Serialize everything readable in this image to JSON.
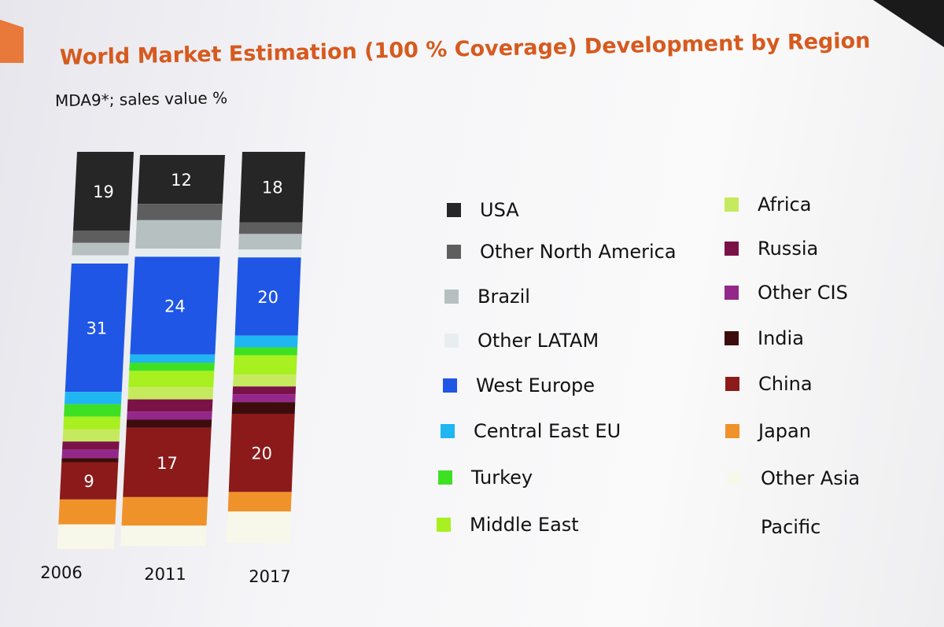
{
  "title": "World Market Estimation (100 % Coverage) Development by Region",
  "subtitle": "MDA9*; sales value %",
  "chart_data": {
    "type": "bar",
    "stacked": true,
    "unit": "%",
    "categories": [
      "2006",
      "2011",
      "2017"
    ],
    "series": [
      {
        "name": "USA",
        "color": "#262626",
        "values": [
          19,
          12,
          18
        ],
        "labels": [
          "19",
          "12",
          "18"
        ]
      },
      {
        "name": "Other North America",
        "color": "#5e5e5e",
        "values": [
          3,
          4,
          3
        ]
      },
      {
        "name": "Brazil",
        "color": "#b7c0c0",
        "values": [
          3,
          7,
          4
        ]
      },
      {
        "name": "Other LATAM",
        "color": "#e8eef0",
        "values": [
          2,
          2,
          2
        ]
      },
      {
        "name": "West Europe",
        "color": "#1f56e6",
        "values": [
          31,
          24,
          20
        ],
        "labels": [
          "31",
          "24",
          "20"
        ]
      },
      {
        "name": "Central East EU",
        "color": "#1fb6f2",
        "values": [
          3,
          2,
          3
        ]
      },
      {
        "name": "Turkey",
        "color": "#3ee024",
        "values": [
          3,
          2,
          2
        ]
      },
      {
        "name": "Middle East",
        "color": "#a8f020",
        "values": [
          3,
          4,
          5
        ]
      },
      {
        "name": "Africa",
        "color": "#c6ea5e",
        "values": [
          3,
          3,
          3
        ]
      },
      {
        "name": "Russia",
        "color": "#7a1248",
        "values": [
          2,
          3,
          2
        ]
      },
      {
        "name": "Other CIS",
        "color": "#93288a",
        "values": [
          2,
          2,
          2
        ]
      },
      {
        "name": "India",
        "color": "#3d0d0d",
        "values": [
          1,
          2,
          3
        ]
      },
      {
        "name": "China",
        "color": "#8c1a1a",
        "values": [
          9,
          17,
          20
        ],
        "labels": [
          "9",
          "17",
          "20"
        ]
      },
      {
        "name": "Japan",
        "color": "#f0922a",
        "values": [
          6,
          7,
          5
        ]
      },
      {
        "name": "Other Asia Pacific",
        "color": "#f8f8ea",
        "values": [
          6,
          5,
          8
        ]
      }
    ],
    "ylim": [
      0,
      100
    ]
  },
  "legend": {
    "left": [
      {
        "label": "USA",
        "color": "#262626"
      },
      {
        "label": "Other North America",
        "color": "#5e5e5e"
      },
      {
        "label": "Brazil",
        "color": "#b7c0c0"
      },
      {
        "label": "Other LATAM",
        "color": "#e8eef0"
      },
      {
        "label": "West Europe",
        "color": "#1f56e6"
      },
      {
        "label": "Central East EU",
        "color": "#1fb6f2"
      },
      {
        "label": "Turkey",
        "color": "#3ee024"
      },
      {
        "label": "Middle East",
        "color": "#a8f020"
      }
    ],
    "right": [
      {
        "label": "Africa",
        "color": "#c6ea5e"
      },
      {
        "label": "Russia",
        "color": "#7a1248"
      },
      {
        "label": "Other CIS",
        "color": "#93288a"
      },
      {
        "label": "India",
        "color": "#3d0d0d"
      },
      {
        "label": "China",
        "color": "#8c1a1a"
      },
      {
        "label": "Japan",
        "color": "#f0922a"
      },
      {
        "label": "Other Asia",
        "color": "#f8f8ea"
      },
      {
        "label": "Pacific",
        "color": ""
      }
    ]
  }
}
